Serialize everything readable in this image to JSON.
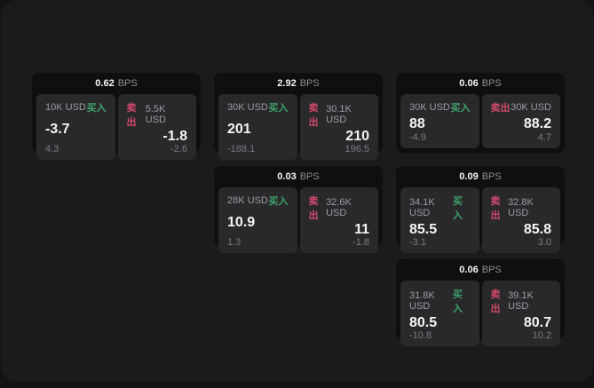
{
  "labels": {
    "buy": "买入",
    "sell": "卖出",
    "bps_suffix": "BPS"
  },
  "colors": {
    "buy_accent": "#3fa368",
    "sell_accent": "#d04a6a",
    "window_bg": "#1b1b1d",
    "card_bg": "#0f0f11",
    "panel_bg": "#29292c",
    "value_text": "#f5f5f6",
    "label_text": "#9b9ba1",
    "sub_text": "#7b7b80"
  },
  "cards": [
    {
      "col": 1,
      "row": 1,
      "bps": "0.62",
      "buy": {
        "size": "10K USD",
        "value": "-3.7",
        "sub": "4.3"
      },
      "sell": {
        "size": "5.5K USD",
        "value": "-1.8",
        "sub": "-2.6"
      }
    },
    {
      "col": 2,
      "row": 1,
      "bps": "2.92",
      "buy": {
        "size": "30K USD",
        "value": "201",
        "sub": "-188.1"
      },
      "sell": {
        "size": "30.1K USD",
        "value": "210",
        "sub": "196.5"
      }
    },
    {
      "col": 3,
      "row": 1,
      "bps": "0.06",
      "buy": {
        "size": "30K USD",
        "value": "88",
        "sub": "-4.9"
      },
      "sell": {
        "size": "30K USD",
        "value": "88.2",
        "sub": "4.7"
      }
    },
    {
      "col": 2,
      "row": 2,
      "bps": "0.03",
      "buy": {
        "size": "28K USD",
        "value": "10.9",
        "sub": "1.3"
      },
      "sell": {
        "size": "32.6K USD",
        "value": "11",
        "sub": "-1.8"
      }
    },
    {
      "col": 3,
      "row": 2,
      "bps": "0.09",
      "buy": {
        "size": "34.1K USD",
        "value": "85.5",
        "sub": "-3.1"
      },
      "sell": {
        "size": "32.8K USD",
        "value": "85.8",
        "sub": "3.0"
      }
    },
    {
      "col": 3,
      "row": 3,
      "bps": "0.06",
      "buy": {
        "size": "31.8K USD",
        "value": "80.5",
        "sub": "-10.8"
      },
      "sell": {
        "size": "39.1K USD",
        "value": "80.7",
        "sub": "10.2"
      }
    }
  ]
}
